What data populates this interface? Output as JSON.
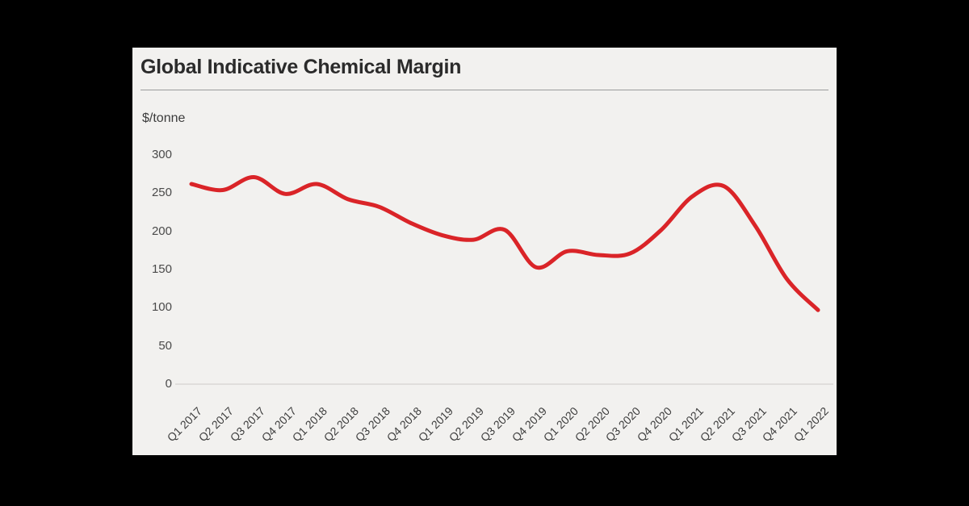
{
  "window": {
    "background": "#000000",
    "panel_background": "#f2f1ef"
  },
  "header": {
    "title": "Global Indicative Chemical Margin"
  },
  "chart_data": {
    "type": "line",
    "title": "Global Indicative Chemical Margin",
    "ylabel": "$/tonne",
    "xlabel": "",
    "categories": [
      "Q1 2017",
      "Q2 2017",
      "Q3 2017",
      "Q4 2017",
      "Q1 2018",
      "Q2 2018",
      "Q3 2018",
      "Q4 2018",
      "Q1 2019",
      "Q2 2019",
      "Q3 2019",
      "Q4 2019",
      "Q1 2020",
      "Q2 2020",
      "Q3 2020",
      "Q4 2020",
      "Q1 2021",
      "Q2 2021",
      "Q3 2021",
      "Q4 2021",
      "Q1 2022"
    ],
    "series": [
      {
        "name": "Global indicative chemical margin ($/tonne)",
        "color": "#da2428",
        "values": [
          262,
          254,
          271,
          249,
          262,
          242,
          232,
          211,
          195,
          189,
          202,
          153,
          174,
          169,
          171,
          202,
          246,
          259,
          207,
          138,
          97
        ]
      }
    ],
    "ylim": [
      0,
      300
    ],
    "yticks": [
      0,
      50,
      100,
      150,
      200,
      250,
      300
    ],
    "x_tick_rotation": -45,
    "grid": "baseline-only",
    "legend": "none",
    "line_smoothing": "spline",
    "baseline_color": "#d9d8d5"
  }
}
